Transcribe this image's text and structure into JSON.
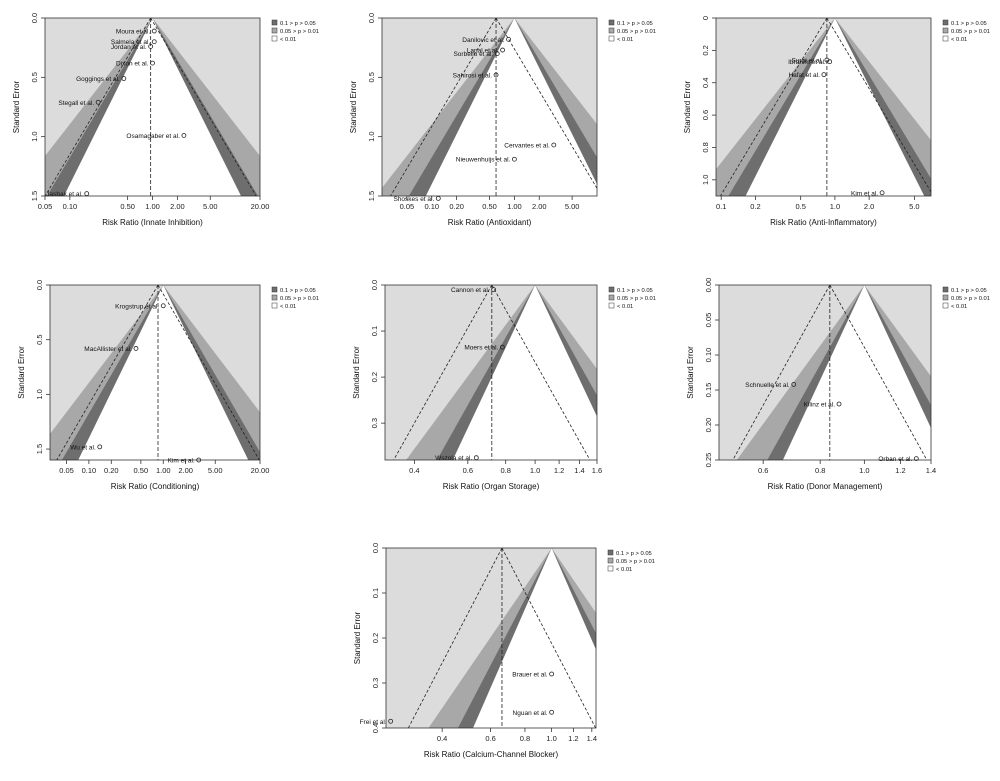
{
  "figure": {
    "legend_labels": [
      "0.1 > p > 0.05",
      "0.05 > p > 0.01",
      "< 0.01"
    ],
    "legend_colors": [
      "#6e6e6e",
      "#a8a8a8",
      "#dcdcdc"
    ],
    "ylabel": "Standard Error"
  },
  "chart_data": [
    {
      "type": "scatter",
      "xlabel": "Risk Ratio (Innate Inhibition)",
      "ylabel": "Standard Error",
      "x_scale": "log",
      "xlim": [
        0.05,
        20
      ],
      "ylim": [
        1.5,
        0
      ],
      "x_ticks": [
        0.05,
        0.1,
        0.5,
        1,
        2,
        5,
        20
      ],
      "x_tick_labels": [
        "0.05",
        "0.10",
        "0.50",
        "1.00",
        "2.00",
        "5.00",
        "20.00"
      ],
      "y_ticks": [
        0,
        0.5,
        1,
        1.5
      ],
      "y_tick_labels": [
        "0.0",
        "0.5",
        "1.0",
        "1.5"
      ],
      "pooled": 0.95,
      "legend_labels": [
        "0.1 > p > 0.05",
        "0.05 > p > 0.01",
        "< 0.01"
      ],
      "points": [
        {
          "label": "Moura et al.",
          "x": 1.05,
          "y": 0.11
        },
        {
          "label": "Salmela et al.",
          "x": 1.05,
          "y": 0.2
        },
        {
          "label": "Jordan et al.",
          "x": 0.95,
          "y": 0.24
        },
        {
          "label": "Dixon et al.",
          "x": 1.0,
          "y": 0.38
        },
        {
          "label": "Goggings et al.",
          "x": 0.45,
          "y": 0.51
        },
        {
          "label": "Stegall et al.",
          "x": 0.22,
          "y": 0.71
        },
        {
          "label": "Osamagaber et al.",
          "x": 2.4,
          "y": 0.99
        },
        {
          "label": "Jasbak et al.",
          "x": 0.16,
          "y": 1.48
        }
      ]
    },
    {
      "type": "scatter",
      "xlabel": "Risk Ratio (Antioxidant)",
      "ylabel": "Standard Error",
      "x_scale": "log",
      "xlim": [
        0.025,
        10
      ],
      "ylim": [
        1.5,
        0
      ],
      "x_ticks": [
        0.05,
        0.1,
        0.2,
        0.5,
        1,
        2,
        5
      ],
      "x_tick_labels": [
        "0.05",
        "0.10",
        "0.20",
        "0.50",
        "1.00",
        "2.00",
        "5.00"
      ],
      "y_ticks": [
        0,
        0.5,
        1,
        1.5
      ],
      "y_tick_labels": [
        "0.0",
        "0.5",
        "1.0",
        "1.5"
      ],
      "pooled": 0.6,
      "legend_labels": [
        "0.1 > p > 0.05",
        "0.05 > p > 0.01",
        "< 0.01"
      ],
      "points": [
        {
          "label": "Danilovic et al.",
          "x": 0.85,
          "y": 0.18
        },
        {
          "label": "Lanal et al.",
          "x": 0.72,
          "y": 0.27
        },
        {
          "label": "Sorbello et al.",
          "x": 0.62,
          "y": 0.3
        },
        {
          "label": "Sahirosi et al.",
          "x": 0.6,
          "y": 0.48
        },
        {
          "label": "Cervantes et al.",
          "x": 3.0,
          "y": 1.07
        },
        {
          "label": "Nieuwenhuijs et al.",
          "x": 1.0,
          "y": 1.19
        },
        {
          "label": "Shoskes et al.",
          "x": 0.12,
          "y": 1.52
        }
      ]
    },
    {
      "type": "scatter",
      "xlabel": "Risk Ratio (Anti-Inflammatory)",
      "ylabel": "Standard Error",
      "x_scale": "log",
      "xlim": [
        0.09,
        7
      ],
      "ylim": [
        1.1,
        0
      ],
      "x_ticks": [
        0.1,
        0.2,
        0.5,
        1,
        2,
        5
      ],
      "x_tick_labels": [
        "0.1",
        "0.2",
        "0.5",
        "1.0",
        "2.0",
        "5.0"
      ],
      "y_ticks": [
        0,
        0.2,
        0.4,
        0.6,
        0.8,
        1.0
      ],
      "y_tick_labels": [
        "0",
        "0.2",
        "0.4",
        "0.6",
        "0.8",
        "1.0"
      ],
      "pooled": 0.85,
      "legend_labels": [
        "0.1 > p > 0.05",
        "0.05 > p > 0.01",
        "< 0.01"
      ],
      "points": [
        {
          "label": "Surat et al.",
          "x": 0.85,
          "y": 0.26
        },
        {
          "label": "Ibrahim et al.",
          "x": 0.9,
          "y": 0.27
        },
        {
          "label": "Hafat et al.",
          "x": 0.8,
          "y": 0.35
        },
        {
          "label": "Kim et al.",
          "x": 2.6,
          "y": 1.08
        }
      ]
    },
    {
      "type": "scatter",
      "xlabel": "Risk Ratio (Conditioning)",
      "ylabel": "Standard Error",
      "x_scale": "log",
      "xlim": [
        0.03,
        20
      ],
      "ylim": [
        1.6,
        0
      ],
      "x_ticks": [
        0.05,
        0.1,
        0.2,
        0.5,
        1,
        2,
        5,
        20
      ],
      "x_tick_labels": [
        "0.05",
        "0.10",
        "0.20",
        "0.50",
        "1.00",
        "2.00",
        "5.00",
        "20.00"
      ],
      "y_ticks": [
        0,
        0.5,
        1,
        1.5
      ],
      "y_tick_labels": [
        "0.0",
        "0.5",
        "1.0",
        "1.5"
      ],
      "pooled": 0.85,
      "legend_labels": [
        "0.1 > p > 0.05",
        "0.05 > p > 0.01",
        "< 0.01"
      ],
      "points": [
        {
          "label": "Krogstrup et al.",
          "x": 1.0,
          "y": 0.19
        },
        {
          "label": "MacAllister et al.",
          "x": 0.43,
          "y": 0.58
        },
        {
          "label": "Wu et al.",
          "x": 0.14,
          "y": 1.48
        },
        {
          "label": "Kim et al.",
          "x": 3.0,
          "y": 1.6
        }
      ]
    },
    {
      "type": "scatter",
      "xlabel": "Risk Ratio (Organ Storage)",
      "ylabel": "Standard Error",
      "x_scale": "log",
      "xlim": [
        0.32,
        1.6
      ],
      "ylim": [
        0.38,
        0
      ],
      "x_ticks": [
        0.4,
        0.6,
        0.8,
        1.0,
        1.2,
        1.4,
        1.6
      ],
      "x_tick_labels": [
        "0.4",
        "0.6",
        "0.8",
        "1.0",
        "1.2",
        "1.4",
        "1.6"
      ],
      "y_ticks": [
        0,
        0.1,
        0.2,
        0.3
      ],
      "y_tick_labels": [
        "0.0",
        "0.1",
        "0.2",
        "0.3"
      ],
      "pooled": 0.72,
      "legend_labels": [
        "0.1 > p > 0.05",
        "0.05 > p > 0.01",
        "< 0.01"
      ],
      "points": [
        {
          "label": "Cannon et al.",
          "x": 0.73,
          "y": 0.01
        },
        {
          "label": "Moers et al.",
          "x": 0.78,
          "y": 0.135
        },
        {
          "label": "Wszola et al.",
          "x": 0.64,
          "y": 0.375
        }
      ]
    },
    {
      "type": "scatter",
      "xlabel": "Risk Ratio (Donor Management)",
      "ylabel": "Standard Error",
      "x_scale": "log",
      "xlim": [
        0.48,
        1.4
      ],
      "ylim": [
        0.25,
        0
      ],
      "x_ticks": [
        0.6,
        0.8,
        1.0,
        1.2,
        1.4
      ],
      "x_tick_labels": [
        "0.6",
        "0.8",
        "1.0",
        "1.2",
        "1.4"
      ],
      "y_ticks": [
        0,
        0.05,
        0.1,
        0.15,
        0.2,
        0.25
      ],
      "y_tick_labels": [
        "0.00",
        "0.05",
        "0.10",
        "0.15",
        "0.20",
        "0.25"
      ],
      "pooled": 0.84,
      "legend_labels": [
        "0.1 > p > 0.05",
        "0.05 > p > 0.01",
        "< 0.01"
      ],
      "points": [
        {
          "label": "Schnuelle et al.",
          "x": 0.7,
          "y": 0.142
        },
        {
          "label": "Kilinz et al.",
          "x": 0.88,
          "y": 0.17
        },
        {
          "label": "Orban et al.",
          "x": 1.3,
          "y": 0.248
        }
      ]
    },
    {
      "type": "scatter",
      "xlabel": "Risk Ratio (Calcium-Channel Blocker)",
      "ylabel": "Standard Error",
      "x_scale": "log",
      "xlim": [
        0.25,
        1.45
      ],
      "ylim": [
        0.4,
        0
      ],
      "x_ticks": [
        0.4,
        0.6,
        0.8,
        1.0,
        1.2,
        1.4
      ],
      "x_tick_labels": [
        "0.4",
        "0.6",
        "0.8",
        "1.0",
        "1.2",
        "1.4"
      ],
      "y_ticks": [
        0,
        0.1,
        0.2,
        0.3,
        0.4
      ],
      "y_tick_labels": [
        "0.0",
        "0.1",
        "0.2",
        "0.3",
        "0.4"
      ],
      "pooled": 0.66,
      "legend_labels": [
        "0.1 > p > 0.05",
        "0.05 > p > 0.01",
        "< 0.01"
      ],
      "points": [
        {
          "label": "Brauer et al.",
          "x": 1.0,
          "y": 0.28
        },
        {
          "label": "Nguan et al.",
          "x": 1.0,
          "y": 0.365
        },
        {
          "label": "Frei et al.",
          "x": 0.26,
          "y": 0.385
        }
      ]
    }
  ]
}
